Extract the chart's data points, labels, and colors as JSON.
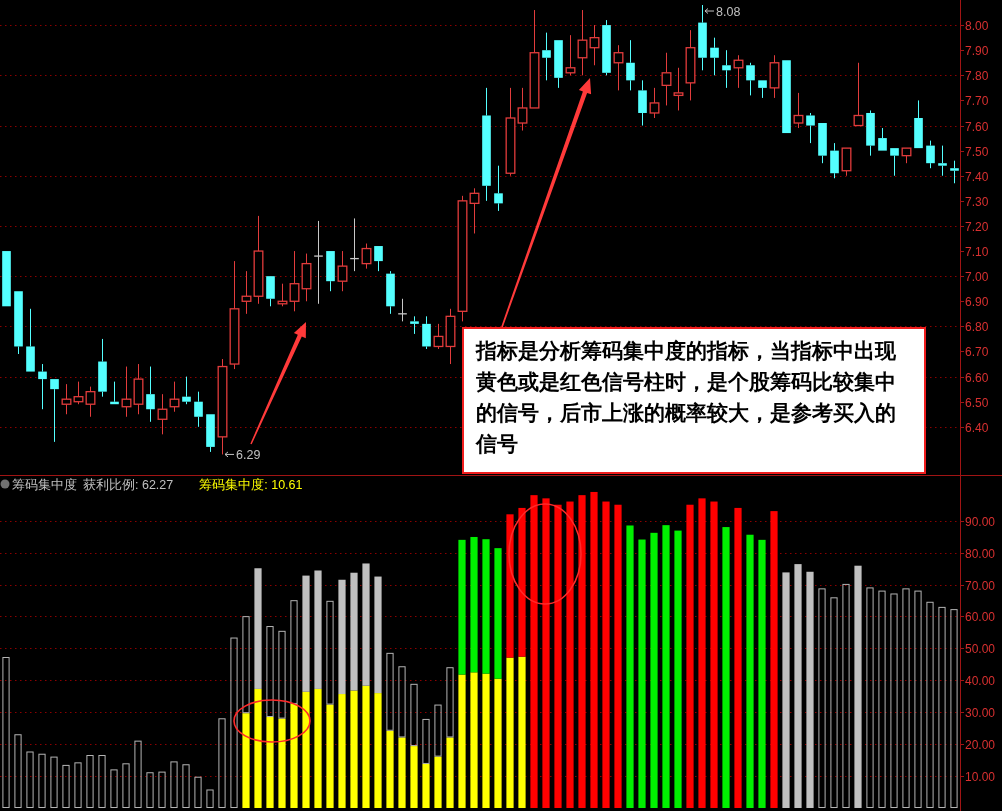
{
  "chart_data": [
    {
      "type": "candlestick",
      "categories": [
        null,
        null,
        null,
        null,
        null,
        null,
        null,
        null,
        null,
        null,
        null,
        null,
        null,
        null,
        null,
        null,
        null,
        null,
        null,
        null,
        null,
        null,
        null,
        null,
        null,
        null,
        null,
        null,
        null,
        null,
        null,
        null,
        null,
        null,
        null,
        null,
        null,
        null,
        null,
        null,
        null,
        null,
        null,
        null,
        null,
        null,
        null,
        null,
        null,
        null,
        null,
        null,
        null,
        null,
        null,
        null,
        null,
        null,
        null,
        null,
        null,
        null,
        null,
        null,
        null,
        null,
        null,
        null,
        null,
        null,
        null,
        null,
        null,
        null,
        null,
        null,
        null,
        null,
        null,
        null
      ],
      "ohlc": [
        [
          7.1,
          7.1,
          6.88,
          6.88
        ],
        [
          6.94,
          6.94,
          6.69,
          6.72
        ],
        [
          6.72,
          6.87,
          6.62,
          6.62
        ],
        [
          6.62,
          6.65,
          6.47,
          6.59
        ],
        [
          6.59,
          6.59,
          6.34,
          6.55
        ],
        [
          6.49,
          6.57,
          6.45,
          6.51
        ],
        [
          6.5,
          6.58,
          6.49,
          6.52
        ],
        [
          6.49,
          6.56,
          6.44,
          6.54
        ],
        [
          6.66,
          6.75,
          6.52,
          6.54
        ],
        [
          6.5,
          6.58,
          6.49,
          6.49
        ],
        [
          6.48,
          6.64,
          6.44,
          6.51
        ],
        [
          6.49,
          6.65,
          6.45,
          6.59
        ],
        [
          6.53,
          6.64,
          6.42,
          6.47
        ],
        [
          6.43,
          6.53,
          6.37,
          6.47
        ],
        [
          6.48,
          6.58,
          6.46,
          6.51
        ],
        [
          6.52,
          6.6,
          6.49,
          6.5
        ],
        [
          6.5,
          6.54,
          6.4,
          6.44
        ],
        [
          6.45,
          6.45,
          6.3,
          6.32
        ],
        [
          6.36,
          6.67,
          6.29,
          6.64
        ],
        [
          6.65,
          7.06,
          6.63,
          6.87
        ],
        [
          6.9,
          7.02,
          6.85,
          6.92
        ],
        [
          6.92,
          7.24,
          6.89,
          7.1
        ],
        [
          7.0,
          7.0,
          6.88,
          6.91
        ],
        [
          6.89,
          6.97,
          6.88,
          6.9
        ],
        [
          6.9,
          7.1,
          6.86,
          6.97
        ],
        [
          6.95,
          7.09,
          6.9,
          7.05
        ],
        [
          7.08,
          7.22,
          6.89,
          7.08
        ],
        [
          7.1,
          7.1,
          6.94,
          6.98
        ],
        [
          6.98,
          7.1,
          6.94,
          7.04
        ],
        [
          7.07,
          7.23,
          7.02,
          7.07
        ],
        [
          7.05,
          7.13,
          7.03,
          7.11
        ],
        [
          7.12,
          7.12,
          7.02,
          7.06
        ],
        [
          7.01,
          7.02,
          6.85,
          6.88
        ],
        [
          6.85,
          6.91,
          6.82,
          6.85
        ],
        [
          6.82,
          6.84,
          6.77,
          6.81
        ],
        [
          6.81,
          6.84,
          6.71,
          6.72
        ],
        [
          6.72,
          6.81,
          6.71,
          6.76
        ],
        [
          6.72,
          6.87,
          6.65,
          6.84
        ],
        [
          6.86,
          7.32,
          6.82,
          7.3
        ],
        [
          7.29,
          7.35,
          7.17,
          7.33
        ],
        [
          7.64,
          7.75,
          7.3,
          7.36
        ],
        [
          7.33,
          7.44,
          7.26,
          7.29
        ],
        [
          7.41,
          7.75,
          7.4,
          7.63
        ],
        [
          7.61,
          7.75,
          7.58,
          7.67
        ],
        [
          7.67,
          8.06,
          7.67,
          7.89
        ],
        [
          7.9,
          7.97,
          7.78,
          7.87
        ],
        [
          7.94,
          7.94,
          7.75,
          7.79
        ],
        [
          7.81,
          7.96,
          7.8,
          7.83
        ],
        [
          7.87,
          8.06,
          7.8,
          7.94
        ],
        [
          7.91,
          8.0,
          7.84,
          7.95
        ],
        [
          8.0,
          8.02,
          7.8,
          7.81
        ],
        [
          7.85,
          7.92,
          7.74,
          7.89
        ],
        [
          7.85,
          7.94,
          7.74,
          7.78
        ],
        [
          7.74,
          7.78,
          7.6,
          7.65
        ],
        [
          7.65,
          7.75,
          7.63,
          7.69
        ],
        [
          7.76,
          7.89,
          7.68,
          7.81
        ],
        [
          7.72,
          7.83,
          7.66,
          7.73
        ],
        [
          7.77,
          7.98,
          7.7,
          7.91
        ],
        [
          8.01,
          8.08,
          7.82,
          7.87
        ],
        [
          7.91,
          7.95,
          7.8,
          7.87
        ],
        [
          7.84,
          7.9,
          7.75,
          7.82
        ],
        [
          7.83,
          7.88,
          7.75,
          7.86
        ],
        [
          7.84,
          7.85,
          7.72,
          7.78
        ],
        [
          7.78,
          7.78,
          7.71,
          7.75
        ],
        [
          7.75,
          7.88,
          7.71,
          7.85
        ],
        [
          7.86,
          7.86,
          7.57,
          7.57
        ],
        [
          7.61,
          7.73,
          7.59,
          7.64
        ],
        [
          7.64,
          7.65,
          7.53,
          7.6
        ],
        [
          7.61,
          7.61,
          7.45,
          7.48
        ],
        [
          7.5,
          7.53,
          7.39,
          7.41
        ],
        [
          7.42,
          7.51,
          7.4,
          7.51
        ],
        [
          7.6,
          7.85,
          7.6,
          7.64
        ],
        [
          7.65,
          7.66,
          7.48,
          7.52
        ],
        [
          7.55,
          7.59,
          7.5,
          7.5
        ],
        [
          7.51,
          7.51,
          7.4,
          7.48
        ],
        [
          7.48,
          7.51,
          7.45,
          7.51
        ],
        [
          7.63,
          7.7,
          7.51,
          7.51
        ],
        [
          7.52,
          7.54,
          7.43,
          7.45
        ],
        [
          7.45,
          7.52,
          7.4,
          7.44
        ],
        [
          7.43,
          7.46,
          7.37,
          7.42
        ]
      ],
      "colors": [
        "#54ffff",
        "#54ffff",
        "#54ffff",
        "#54ffff",
        "#54ffff",
        "#e23c3c",
        "#e23c3c",
        "#e23c3c",
        "#54ffff",
        "#54ffff",
        "#e23c3c",
        "#e23c3c",
        "#54ffff",
        "#e23c3c",
        "#e23c3c",
        "#54ffff",
        "#54ffff",
        "#54ffff",
        "#e23c3c",
        "#e23c3c",
        "#e23c3c",
        "#e23c3c",
        "#54ffff",
        "#e23c3c",
        "#e23c3c",
        "#e23c3c",
        "#c8c8c8",
        "#54ffff",
        "#e23c3c",
        "#c8c8c8",
        "#e23c3c",
        "#54ffff",
        "#54ffff",
        "#c8c8c8",
        "#54ffff",
        "#54ffff",
        "#e23c3c",
        "#e23c3c",
        "#e23c3c",
        "#e23c3c",
        "#54ffff",
        "#54ffff",
        "#e23c3c",
        "#e23c3c",
        "#e23c3c",
        "#54ffff",
        "#54ffff",
        "#e23c3c",
        "#e23c3c",
        "#e23c3c",
        "#54ffff",
        "#e23c3c",
        "#54ffff",
        "#54ffff",
        "#e23c3c",
        "#e23c3c",
        "#e23c3c",
        "#e23c3c",
        "#54ffff",
        "#54ffff",
        "#54ffff",
        "#e23c3c",
        "#54ffff",
        "#54ffff",
        "#e23c3c",
        "#54ffff",
        "#e23c3c",
        "#54ffff",
        "#54ffff",
        "#54ffff",
        "#e23c3c",
        "#e23c3c",
        "#54ffff",
        "#54ffff",
        "#54ffff",
        "#e23c3c",
        "#54ffff",
        "#54ffff",
        "#54ffff",
        "#54ffff"
      ],
      "ylim": [
        6.22,
        8.1
      ],
      "yticks": [
        {
          "value": 6.4,
          "label": "6.40"
        },
        {
          "value": 6.5,
          "label": "6.50"
        },
        {
          "value": 6.6,
          "label": "6.60"
        },
        {
          "value": 6.7,
          "label": "6.70"
        },
        {
          "value": 6.8,
          "label": "6.80"
        },
        {
          "value": 6.9,
          "label": "6.90"
        },
        {
          "value": 7.0,
          "label": "7.00"
        },
        {
          "value": 7.1,
          "label": "7.10"
        },
        {
          "value": 7.2,
          "label": "7.20"
        },
        {
          "value": 7.3,
          "label": "7.30"
        },
        {
          "value": 7.4,
          "label": "7.40"
        },
        {
          "value": 7.5,
          "label": "7.50"
        },
        {
          "value": 7.6,
          "label": "7.60"
        },
        {
          "value": 7.7,
          "label": "7.70"
        },
        {
          "value": 7.8,
          "label": "7.80"
        },
        {
          "value": 7.9,
          "label": "7.90"
        },
        {
          "value": 8.0,
          "label": "8.00"
        }
      ],
      "tick_labels": "y",
      "ref_lines": [
        {
          "axis": "y",
          "value": 6.4,
          "color": "#8c0000",
          "line_style": "dotted"
        },
        {
          "axis": "y",
          "value": 6.6,
          "color": "#8c0000",
          "line_style": "dotted"
        },
        {
          "axis": "y",
          "value": 6.8,
          "color": "#8c0000",
          "line_style": "dotted"
        },
        {
          "axis": "y",
          "value": 7.0,
          "color": "#8c0000",
          "line_style": "dotted"
        },
        {
          "axis": "y",
          "value": 7.2,
          "color": "#8c0000",
          "line_style": "dotted"
        },
        {
          "axis": "y",
          "value": 7.4,
          "color": "#8c0000",
          "line_style": "dotted"
        },
        {
          "axis": "y",
          "value": 7.6,
          "color": "#8c0000",
          "line_style": "dotted"
        },
        {
          "axis": "y",
          "value": 7.8,
          "color": "#8c0000",
          "line_style": "dotted"
        },
        {
          "axis": "y",
          "value": 8.0,
          "color": "#8c0000",
          "line_style": "dotted"
        }
      ],
      "annotations": [
        "8.08",
        "6.29",
        "指标是分析筹码集中度的指标，当指标中出现黄色或是红色信号柱时，是个股筹码比较集中的信号，后市上涨的概率较大，是参考买入的信号"
      ]
    },
    {
      "type": "bar",
      "stacked": true,
      "categories": [
        null,
        null,
        null,
        null,
        null,
        null,
        null,
        null,
        null,
        null,
        null,
        null,
        null,
        null,
        null,
        null,
        null,
        null,
        null,
        null,
        null,
        null,
        null,
        null,
        null,
        null,
        null,
        null,
        null,
        null,
        null,
        null,
        null,
        null,
        null,
        null,
        null,
        null,
        null,
        null,
        null,
        null,
        null,
        null,
        null,
        null,
        null,
        null,
        null,
        null,
        null,
        null,
        null,
        null,
        null,
        null,
        null,
        null,
        null,
        null,
        null,
        null,
        null,
        null,
        null,
        null,
        null,
        null,
        null,
        null,
        null,
        null,
        null,
        null,
        null,
        null,
        null,
        null,
        null,
        null
      ],
      "series": [
        {
          "color": "#ffff00",
          "values": [
            null,
            null,
            null,
            null,
            null,
            null,
            null,
            null,
            null,
            null,
            null,
            null,
            null,
            null,
            null,
            null,
            null,
            null,
            null,
            null,
            29.7,
            37.3,
            28.5,
            28.0,
            32.6,
            36.4,
            37.3,
            32.4,
            35.7,
            36.8,
            38.3,
            36.0,
            24.2,
            22.1,
            19.4,
            13.8,
            16.1,
            22.1,
            41.8,
            42.5,
            42.1,
            40.5,
            47.1,
            47.4,
            null,
            null,
            null,
            null,
            null,
            null,
            null,
            null,
            null,
            null,
            null,
            null,
            null,
            null,
            null,
            null,
            null,
            null,
            null,
            null,
            null,
            null,
            null,
            null,
            null,
            null,
            null,
            null,
            null,
            null,
            null,
            null,
            null,
            null,
            null,
            null
          ]
        },
        {
          "color": "#b4b4b4",
          "colors": [
            null,
            null,
            null,
            null,
            null,
            null,
            null,
            null,
            null,
            null,
            null,
            null,
            null,
            null,
            null,
            null,
            null,
            null,
            null,
            null,
            null,
            "#c0c0c0",
            null,
            null,
            null,
            "#c0c0c0",
            "#c0c0c0",
            null,
            "#c0c0c0",
            "#c0c0c0",
            "#c0c0c0",
            "#c0c0c0",
            null,
            null,
            null,
            null,
            null,
            null,
            "#00f000",
            "#00f000",
            "#00f000",
            "#00f000",
            "#ff0000",
            "#ff0000",
            "#ff0000",
            "#ff0000",
            "#ff0000",
            "#ff0000",
            "#ff0000",
            "#ff0000",
            "#ff0000",
            "#ff0000",
            "#00f000",
            "#00f000",
            "#00f000",
            "#00f000",
            "#00f000",
            "#ff0000",
            "#ff0000",
            "#ff0000",
            "#00f000",
            "#ff0000",
            "#00f000",
            "#00f000",
            "#ff0000",
            "#c0c0c0",
            "#c0c0c0",
            "#c0c0c0",
            null,
            null,
            null,
            "#c0c0c0",
            null,
            null,
            null,
            null,
            null,
            null,
            null,
            null
          ],
          "values": [
            47.3,
            23.1,
            17.7,
            17.0,
            16.1,
            13.5,
            14.3,
            16.6,
            16.6,
            12.1,
            14.0,
            21.1,
            11.2,
            11.4,
            14.6,
            13.7,
            9.8,
            5.8,
            28.1,
            53.4,
            30.4,
            37.8,
            28.5,
            27.5,
            32.5,
            36.4,
            37.1,
            32.5,
            35.8,
            36.9,
            38.3,
            36.5,
            24.4,
            22.3,
            19.5,
            14.1,
            16.3,
            22.0,
            42.2,
            42.4,
            42.1,
            40.9,
            44.9,
            46.6,
            98,
            97,
            95,
            96,
            98,
            99,
            96,
            95,
            88.5,
            84.1,
            86.2,
            88.6,
            86.9,
            95,
            97,
            96,
            88.0,
            94,
            85.6,
            84.0,
            93,
            73.8,
            76.4,
            74.0,
            68.8,
            66.0,
            70.2,
            75.9,
            69.1,
            68.1,
            67.2,
            68.8,
            68.1,
            64.6,
            63.0,
            62.3
          ]
        }
      ],
      "ylim": [
        0,
        104
      ],
      "yticks": [
        {
          "value": 10,
          "label": "10.00"
        },
        {
          "value": 20,
          "label": "20.00"
        },
        {
          "value": 30,
          "label": "30.00"
        },
        {
          "value": 40,
          "label": "40.00"
        },
        {
          "value": 50,
          "label": "50.00"
        },
        {
          "value": 60,
          "label": "60.00"
        },
        {
          "value": 70,
          "label": "70.00"
        },
        {
          "value": 80,
          "label": "80.00"
        },
        {
          "value": 90,
          "label": "90.00"
        }
      ],
      "grid": "y",
      "tick_labels": "y",
      "annotations": [
        "筹码集中度",
        "获利比例: 62.27",
        "筹码集中度: 10.61"
      ]
    }
  ]
}
